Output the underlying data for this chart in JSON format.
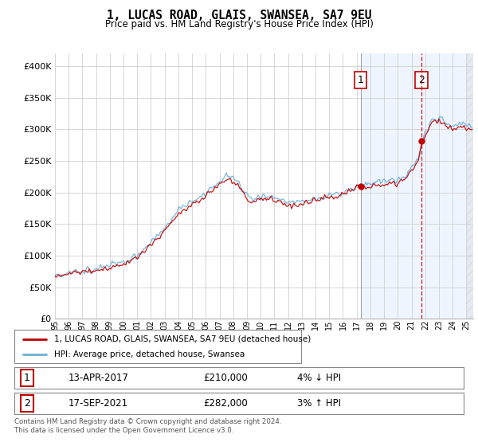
{
  "title": "1, LUCAS ROAD, GLAIS, SWANSEA, SA7 9EU",
  "subtitle": "Price paid vs. HM Land Registry's House Price Index (HPI)",
  "xlim_start": 1995.0,
  "xlim_end": 2025.5,
  "ylim": [
    0,
    420000
  ],
  "yticks": [
    0,
    50000,
    100000,
    150000,
    200000,
    250000,
    300000,
    350000,
    400000
  ],
  "ytick_labels": [
    "£0",
    "£50K",
    "£100K",
    "£150K",
    "£200K",
    "£250K",
    "£300K",
    "£350K",
    "£400K"
  ],
  "sale1_x": 2017.28,
  "sale1_y": 210000,
  "sale1_label": "13-APR-2017",
  "sale1_price": "£210,000",
  "sale1_hpi": "4% ↓ HPI",
  "sale1_marker": "1",
  "sale2_x": 2021.72,
  "sale2_y": 282000,
  "sale2_label": "17-SEP-2021",
  "sale2_price": "£282,000",
  "sale2_hpi": "3% ↑ HPI",
  "sale2_marker": "2",
  "hpi_color": "#6aaed6",
  "sale_color": "#c00000",
  "grid_color": "#d0d0d0",
  "shade_color": "#ddeeff",
  "background_color": "#ffffff",
  "legend_label1": "1, LUCAS ROAD, GLAIS, SWANSEA, SA7 9EU (detached house)",
  "legend_label2": "HPI: Average price, detached house, Swansea",
  "footer": "Contains HM Land Registry data © Crown copyright and database right 2024.\nThis data is licensed under the Open Government Licence v3.0."
}
